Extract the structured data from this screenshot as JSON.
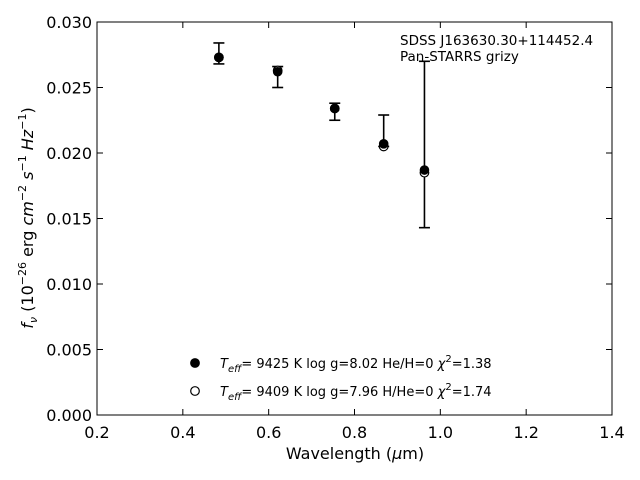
{
  "chart_data": {
    "type": "scatter",
    "annotation": [
      "SDSS J163630.30+114452.4",
      "Pan-STARRS grizy"
    ],
    "xlabel": "Wavelength (μm)",
    "ylabel": "f_ν (10^-26 erg cm^-2 s^-1 Hz^-1)",
    "xlim": [
      0.2,
      1.4
    ],
    "ylim": [
      0.0,
      0.03
    ],
    "xticks": [
      "0.2",
      "0.4",
      "0.6",
      "0.8",
      "1.0",
      "1.2",
      "1.4"
    ],
    "yticks": [
      "0.000",
      "0.005",
      "0.010",
      "0.015",
      "0.020",
      "0.025",
      "0.030"
    ],
    "observed": {
      "x": [
        0.484,
        0.621,
        0.754,
        0.868,
        0.963
      ],
      "y": [
        0.0274,
        0.0261,
        0.0235,
        0.0207,
        0.0187
      ],
      "yerr_low": [
        0.0268,
        0.025,
        0.0225,
        0.0205,
        0.0143
      ],
      "yerr_high": [
        0.0284,
        0.0266,
        0.0238,
        0.0229,
        0.027
      ]
    },
    "series": [
      {
        "marker": "filled",
        "x": [
          0.484,
          0.621,
          0.754,
          0.868,
          0.963
        ],
        "y": [
          0.0273,
          0.0262,
          0.0234,
          0.0207,
          0.0187
        ]
      },
      {
        "marker": "open",
        "x": [
          0.484,
          0.621,
          0.754,
          0.868,
          0.963
        ],
        "y": [
          0.0273,
          0.0263,
          0.0234,
          0.0205,
          0.0185
        ]
      }
    ],
    "legend": [
      {
        "marker": "filled",
        "teff_value": "9425 K",
        "logg": "log g=8.02",
        "comp": "He/H=0",
        "chi2": "=1.38"
      },
      {
        "marker": "open",
        "teff_value": "9409 K",
        "logg": "log g=7.96",
        "comp": "H/He=0",
        "chi2": "=1.74"
      }
    ]
  }
}
